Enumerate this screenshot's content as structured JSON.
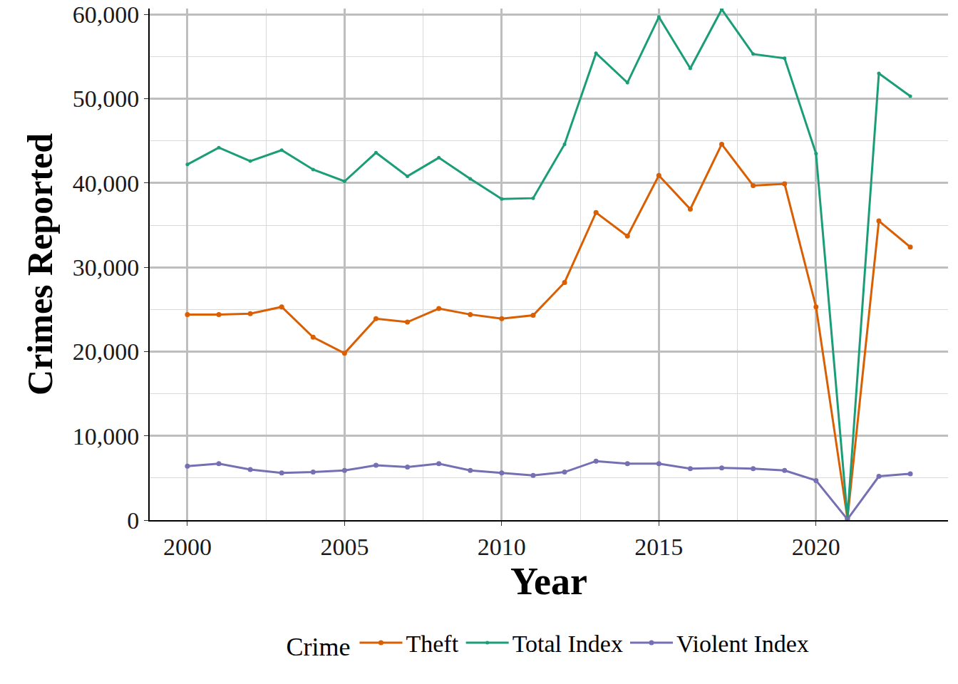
{
  "chart_data": {
    "type": "line",
    "x_label": "Year",
    "y_label": "Crimes Reported",
    "legend_title": "Crime",
    "legend": "bottom",
    "grid": true,
    "marker": "circle",
    "x": [
      2000,
      2001,
      2002,
      2003,
      2004,
      2005,
      2006,
      2007,
      2008,
      2009,
      2010,
      2011,
      2012,
      2013,
      2014,
      2015,
      2016,
      2017,
      2018,
      2019,
      2020,
      2021,
      2022,
      2023
    ],
    "series": [
      {
        "name": "Theft",
        "color": "#d95f02",
        "values": [
          24400,
          24400,
          24500,
          25300,
          21700,
          19800,
          23900,
          23500,
          25100,
          24400,
          23900,
          24300,
          28200,
          36500,
          33700,
          40900,
          36900,
          44600,
          39700,
          39900,
          25300,
          200,
          35500,
          32400
        ]
      },
      {
        "name": "Total Index",
        "color": "#1b9e77",
        "values": [
          42200,
          44200,
          42600,
          43900,
          41600,
          40200,
          43600,
          40800,
          43000,
          40500,
          38100,
          38200,
          44600,
          55400,
          51900,
          59700,
          53600,
          60600,
          55300,
          54800,
          43500,
          300,
          53000,
          50300
        ]
      },
      {
        "name": "Violent Index",
        "color": "#7570b3",
        "values": [
          6400,
          6700,
          6000,
          5600,
          5700,
          5900,
          6500,
          6300,
          6700,
          5900,
          5600,
          5300,
          5700,
          7000,
          6700,
          6700,
          6100,
          6200,
          6100,
          5900,
          4700,
          100,
          5200,
          5500
        ]
      }
    ],
    "xlim": [
      1998.8,
      2024.2
    ],
    "xticks": [
      2000,
      2005,
      2010,
      2015,
      2020
    ],
    "ylim": [
      0,
      60700
    ],
    "yticks": [
      0,
      {
        "value": 10000,
        "label": "10,000"
      },
      {
        "value": 20000,
        "label": "20,000"
      },
      {
        "value": 30000,
        "label": "30,000"
      },
      {
        "value": 40000,
        "label": "40,000"
      },
      {
        "value": 50000,
        "label": "50,000"
      },
      {
        "value": 60000,
        "label": "60,000"
      }
    ]
  }
}
